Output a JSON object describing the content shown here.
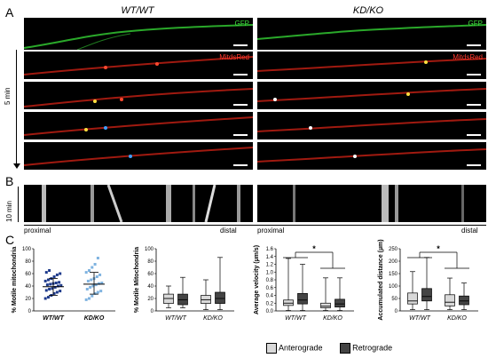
{
  "panel_letters": {
    "a": "A",
    "b": "B",
    "c": "C"
  },
  "columns": {
    "left": "WT/WT",
    "right": "KD/KO"
  },
  "channels": {
    "gfp": "GFP",
    "mito": "MitdsRed"
  },
  "panel_a": {
    "time_label": "5 min"
  },
  "panel_b": {
    "time_label": "10 min",
    "proximal": "proximal",
    "distal": "distal"
  },
  "chart_data": [
    {
      "type": "scatter",
      "ylabel": "% Motile mitochondria",
      "ylim": [
        0,
        100
      ],
      "yticks": [
        0,
        20,
        40,
        60,
        80,
        100
      ],
      "categories": [
        "WT/WT",
        "KD/KO"
      ],
      "series": [
        {
          "values": [
            20,
            22,
            25,
            28,
            30,
            32,
            33,
            35,
            36,
            38,
            40,
            41,
            42,
            43,
            44,
            45,
            46,
            48,
            50,
            52,
            55,
            58,
            60,
            62,
            65
          ]
        },
        {
          "values": [
            18,
            20,
            24,
            28,
            30,
            32,
            35,
            38,
            40,
            42,
            44,
            45,
            48,
            50,
            52,
            55,
            58,
            62,
            65,
            70,
            75,
            85
          ]
        }
      ],
      "mean": [
        39,
        43
      ],
      "sd": [
        [
          25,
          52
        ],
        [
          27,
          62
        ]
      ],
      "colors": [
        "#1f3b8c",
        "#7fb3e0"
      ]
    },
    {
      "type": "boxplot",
      "ylabel": "% Motile Mitochondria",
      "ylim": [
        0,
        100
      ],
      "yticks": [
        0,
        20,
        40,
        60,
        80,
        100
      ],
      "categories": [
        "WT/WT",
        "KD/KO"
      ],
      "boxes": [
        {
          "min": 5,
          "q1": 12,
          "median": 20,
          "q3": 27,
          "max": 40
        },
        {
          "min": 5,
          "q1": 10,
          "median": 18,
          "q3": 27,
          "max": 54
        },
        {
          "min": 2,
          "q1": 12,
          "median": 18,
          "q3": 25,
          "max": 50
        },
        {
          "min": 2,
          "q1": 12,
          "median": 20,
          "q3": 30,
          "max": 86
        }
      ]
    },
    {
      "type": "boxplot",
      "ylabel": "Average velocity (µm/s)",
      "ylim": [
        0,
        1.6
      ],
      "yticks": [
        0.0,
        0.2,
        0.4,
        0.6,
        0.8,
        1.0,
        1.2,
        1.4,
        1.6
      ],
      "categories": [
        "WT/WT",
        "KD/KO"
      ],
      "boxes": [
        {
          "min": 0.01,
          "q1": 0.14,
          "median": 0.2,
          "q3": 0.28,
          "max": 1.35
        },
        {
          "min": 0.01,
          "q1": 0.18,
          "median": 0.28,
          "q3": 0.45,
          "max": 1.2
        },
        {
          "min": 0.01,
          "q1": 0.08,
          "median": 0.12,
          "q3": 0.2,
          "max": 0.85
        },
        {
          "min": 0.01,
          "q1": 0.1,
          "median": 0.18,
          "q3": 0.3,
          "max": 0.85
        }
      ],
      "significance": "*"
    },
    {
      "type": "boxplot",
      "ylabel": "Accumulated distance (µm)",
      "ylim": [
        0,
        250
      ],
      "yticks": [
        0,
        50,
        100,
        150,
        200,
        250
      ],
      "categories": [
        "WT/WT",
        "KD/KO"
      ],
      "boxes": [
        {
          "min": 5,
          "q1": 28,
          "median": 40,
          "q3": 72,
          "max": 158
        },
        {
          "min": 5,
          "q1": 40,
          "median": 58,
          "q3": 90,
          "max": 215
        },
        {
          "min": 5,
          "q1": 20,
          "median": 35,
          "q3": 65,
          "max": 132
        },
        {
          "min": 5,
          "q1": 25,
          "median": 40,
          "q3": 60,
          "max": 112
        }
      ],
      "significance": "*"
    }
  ],
  "legend": {
    "anterograde": "Anterograde",
    "retrograde": "Retrograde",
    "colors": [
      "#d9d9d9",
      "#444444"
    ]
  }
}
